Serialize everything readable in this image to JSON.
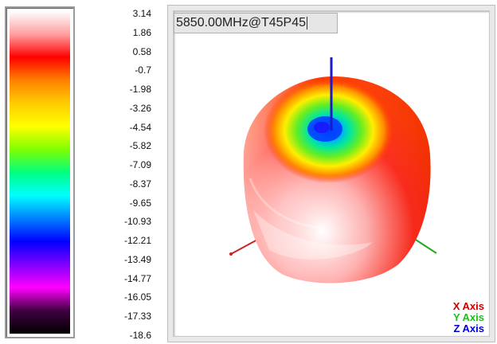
{
  "colorscale": {
    "labels": [
      "3.14",
      "1.86",
      "0.58",
      "-0.7",
      "-1.98",
      "-3.26",
      "-4.54",
      "-5.82",
      "-7.09",
      "-8.37",
      "-9.65",
      "-10.93",
      "-12.21",
      "-13.49",
      "-14.77",
      "-16.05",
      "-17.33",
      "-18.6"
    ],
    "colors": [
      "#ffffff",
      "#ff9fa0",
      "#ff0000",
      "#ff8000",
      "#ffcc00",
      "#ffff00",
      "#80ff00",
      "#00ff80",
      "#00ffff",
      "#0080ff",
      "#0000ff",
      "#8000ff",
      "#ff00ff",
      "#400040",
      "#000000"
    ]
  },
  "view": {
    "frequency_label": "5850.00MHz@T45P45",
    "axes": {
      "x": {
        "label": "X Axis",
        "color": "#cc0000"
      },
      "y": {
        "label": "Y Axis",
        "color": "#22bb22"
      },
      "z": {
        "label": "Z Axis",
        "color": "#0000cc"
      }
    }
  }
}
